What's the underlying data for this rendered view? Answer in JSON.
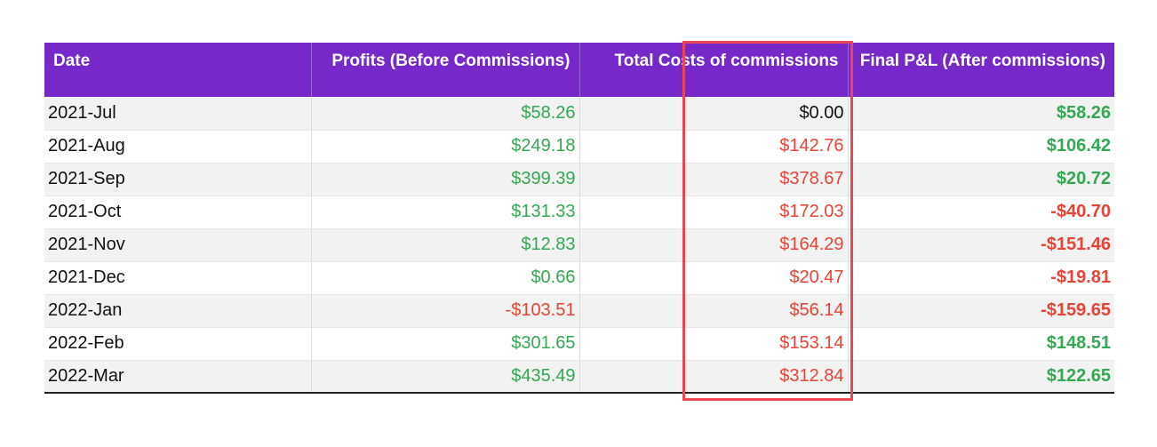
{
  "colors": {
    "header_bg": "#7628c8",
    "header_text": "#ffffff",
    "positive": "#34a853",
    "negative": "#ea4335",
    "neutral": "#111111",
    "highlight_border": "#ee4355",
    "stripe": "#f2f2f2"
  },
  "table": {
    "headers": {
      "date": "Date",
      "profits": "Profits (Before Commissions)",
      "costs": "Total Costs of commissions",
      "final": "Final P&L (After commissions)"
    },
    "rows": [
      {
        "date": "2021-Jul",
        "profits": "$58.26",
        "profits_sign": "pos",
        "costs": "$0.00",
        "costs_sign": "zero",
        "final": "$58.26",
        "final_sign": "pos"
      },
      {
        "date": "2021-Aug",
        "profits": "$249.18",
        "profits_sign": "pos",
        "costs": "$142.76",
        "costs_sign": "neg",
        "final": "$106.42",
        "final_sign": "pos"
      },
      {
        "date": "2021-Sep",
        "profits": "$399.39",
        "profits_sign": "pos",
        "costs": "$378.67",
        "costs_sign": "neg",
        "final": "$20.72",
        "final_sign": "pos"
      },
      {
        "date": "2021-Oct",
        "profits": "$131.33",
        "profits_sign": "pos",
        "costs": "$172.03",
        "costs_sign": "neg",
        "final": "-$40.70",
        "final_sign": "neg"
      },
      {
        "date": "2021-Nov",
        "profits": "$12.83",
        "profits_sign": "pos",
        "costs": "$164.29",
        "costs_sign": "neg",
        "final": "-$151.46",
        "final_sign": "neg"
      },
      {
        "date": "2021-Dec",
        "profits": "$0.66",
        "profits_sign": "pos",
        "costs": "$20.47",
        "costs_sign": "neg",
        "final": "-$19.81",
        "final_sign": "neg"
      },
      {
        "date": "2022-Jan",
        "profits": "-$103.51",
        "profits_sign": "neg",
        "costs": "$56.14",
        "costs_sign": "neg",
        "final": "-$159.65",
        "final_sign": "neg"
      },
      {
        "date": "2022-Feb",
        "profits": "$301.65",
        "profits_sign": "pos",
        "costs": "$153.14",
        "costs_sign": "neg",
        "final": "$148.51",
        "final_sign": "pos"
      },
      {
        "date": "2022-Mar",
        "profits": "$435.49",
        "profits_sign": "pos",
        "costs": "$312.84",
        "costs_sign": "neg",
        "final": "$122.65",
        "final_sign": "pos"
      }
    ]
  }
}
